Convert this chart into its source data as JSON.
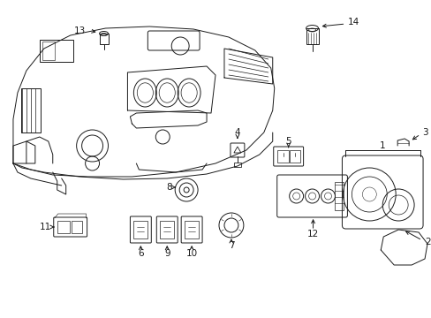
{
  "background_color": "#ffffff",
  "line_color": "#1a1a1a",
  "figsize": [
    4.89,
    3.6
  ],
  "dpi": 100,
  "lw": 0.7,
  "font_size": 7.5
}
